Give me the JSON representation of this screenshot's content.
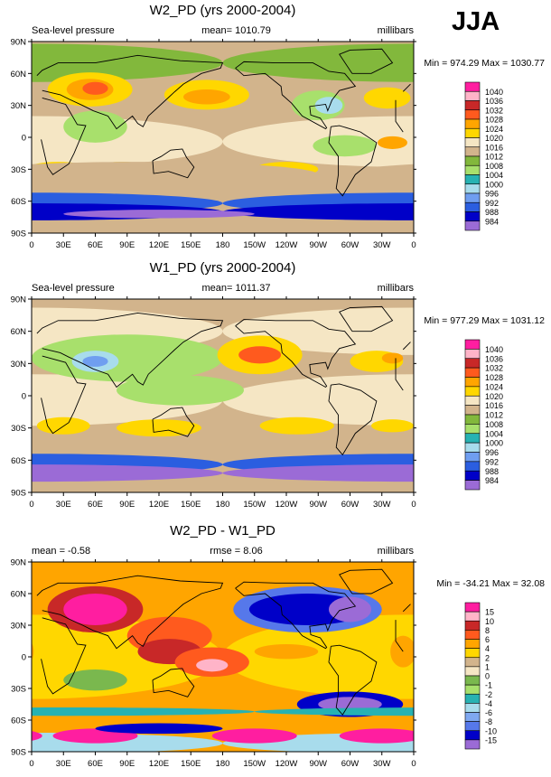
{
  "season": "JJA",
  "colors": {
    "pressure_scale": [
      "#9b6bd6",
      "#0000c8",
      "#2b5ee0",
      "#6f9ef0",
      "#a8dcec",
      "#27b2b2",
      "#a8e06c",
      "#82b83c",
      "#d2b48c",
      "#f5e6c4",
      "#ffd700",
      "#ffa500",
      "#ff5a1e",
      "#c82828",
      "#ffb4c8",
      "#ff1ea0"
    ],
    "diff_scale": [
      "#9b6bd6",
      "#0000c8",
      "#5678ea",
      "#7fa8f0",
      "#a8dcec",
      "#27b2b2",
      "#a8e06c",
      "#7ab84e",
      "#f5e6c4",
      "#d2b48c",
      "#ffd700",
      "#ffa500",
      "#ff5a1e",
      "#c82828",
      "#ffb4c8",
      "#ff1ea0"
    ]
  },
  "panels": [
    {
      "title": "W2_PD (yrs 2000-2004)",
      "left_label": "Sea-level pressure",
      "center_label": "mean= 1010.79",
      "right_label": "millibars",
      "minmax": "Min = 974.29 Max = 1030.77"
    },
    {
      "title": "W1_PD (yrs 2000-2004)",
      "left_label": "Sea-level pressure",
      "center_label": "mean= 1011.37",
      "right_label": "millibars",
      "minmax": "Min = 977.29 Max = 1031.12"
    },
    {
      "title": "W2_PD - W1_PD",
      "left_label": "mean =  -0.58",
      "center_label": "rmse =   8.06",
      "right_label": "millibars",
      "minmax": "Min = -34.21 Max =  32.08"
    }
  ],
  "chart_data": [
    {
      "type": "heatmap",
      "title": "W2_PD (yrs 2000-2004)",
      "variable": "Sea-level pressure",
      "units": "millibars",
      "mean": 1010.79,
      "min": 974.29,
      "max": 1030.77,
      "x_tick_labels": [
        "0",
        "30E",
        "60E",
        "90E",
        "120E",
        "150E",
        "180",
        "150W",
        "120W",
        "90W",
        "60W",
        "30W",
        "0"
      ],
      "y_tick_labels": [
        "90N",
        "60N",
        "30N",
        "0",
        "30S",
        "60S",
        "90S"
      ],
      "xlim": [
        0,
        360
      ],
      "ylim": [
        -90,
        90
      ],
      "colorbar_levels": [
        "1040",
        "1036",
        "1032",
        "1028",
        "1024",
        "1020",
        "1016",
        "1012",
        "1008",
        "1004",
        "1000",
        "996",
        "992",
        "988",
        "984"
      ]
    },
    {
      "type": "heatmap",
      "title": "W1_PD (yrs 2000-2004)",
      "variable": "Sea-level pressure",
      "units": "millibars",
      "mean": 1011.37,
      "min": 977.29,
      "max": 1031.12,
      "x_tick_labels": [
        "0",
        "30E",
        "60E",
        "90E",
        "120E",
        "150E",
        "180",
        "150W",
        "120W",
        "90W",
        "60W",
        "30W",
        "0"
      ],
      "y_tick_labels": [
        "90N",
        "60N",
        "30N",
        "0",
        "30S",
        "60S",
        "90S"
      ],
      "xlim": [
        0,
        360
      ],
      "ylim": [
        -90,
        90
      ],
      "colorbar_levels": [
        "1040",
        "1036",
        "1032",
        "1028",
        "1024",
        "1020",
        "1016",
        "1012",
        "1008",
        "1004",
        "1000",
        "996",
        "992",
        "988",
        "984"
      ]
    },
    {
      "type": "heatmap",
      "title": "W2_PD - W1_PD",
      "units": "millibars",
      "mean": -0.58,
      "rmse": 8.06,
      "min": -34.21,
      "max": 32.08,
      "x_tick_labels": [
        "0",
        "30E",
        "60E",
        "90E",
        "120E",
        "150E",
        "180",
        "150W",
        "120W",
        "90W",
        "60W",
        "30W",
        "0"
      ],
      "y_tick_labels": [
        "90N",
        "60N",
        "30N",
        "0",
        "30S",
        "60S",
        "90S"
      ],
      "xlim": [
        0,
        360
      ],
      "ylim": [
        -90,
        90
      ],
      "colorbar_levels": [
        "15",
        "10",
        "8",
        "6",
        "4",
        "2",
        "1",
        "0",
        "-1",
        "-2",
        "-4",
        "-6",
        "-8",
        "-10",
        "-15"
      ]
    }
  ]
}
